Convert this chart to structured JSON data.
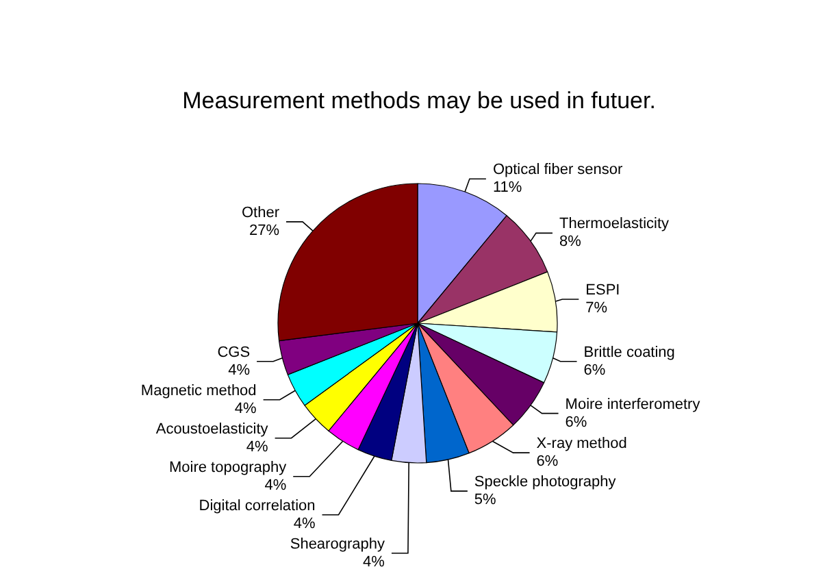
{
  "chart_data": {
    "type": "pie",
    "title": "Measurement methods may be used in futuer.",
    "categories": [
      "Optical fiber sensor",
      "Thermoelasticity",
      "ESPI",
      "Brittle coating",
      "Moire interferometry",
      "X-ray method",
      "Speckle photography",
      "Shearography",
      "Digital correlation",
      "Moire topography",
      "Acoustoelasticity",
      "Magnetic method",
      "CGS",
      "Other"
    ],
    "values": [
      11,
      8,
      7,
      6,
      6,
      6,
      5,
      4,
      4,
      4,
      4,
      4,
      4,
      27
    ],
    "colors": [
      "#9999ff",
      "#993366",
      "#ffffcc",
      "#ccffff",
      "#660066",
      "#ff8080",
      "#0066cc",
      "#ccccff",
      "#000080",
      "#ff00ff",
      "#ffff00",
      "#00ffff",
      "#800080",
      "#800000"
    ],
    "value_labels": [
      "11%",
      "8%",
      "7%",
      "6%",
      "6%",
      "6%",
      "5%",
      "4%",
      "4%",
      "4%",
      "4%",
      "4%",
      "4%",
      "27%"
    ],
    "legend": false
  }
}
